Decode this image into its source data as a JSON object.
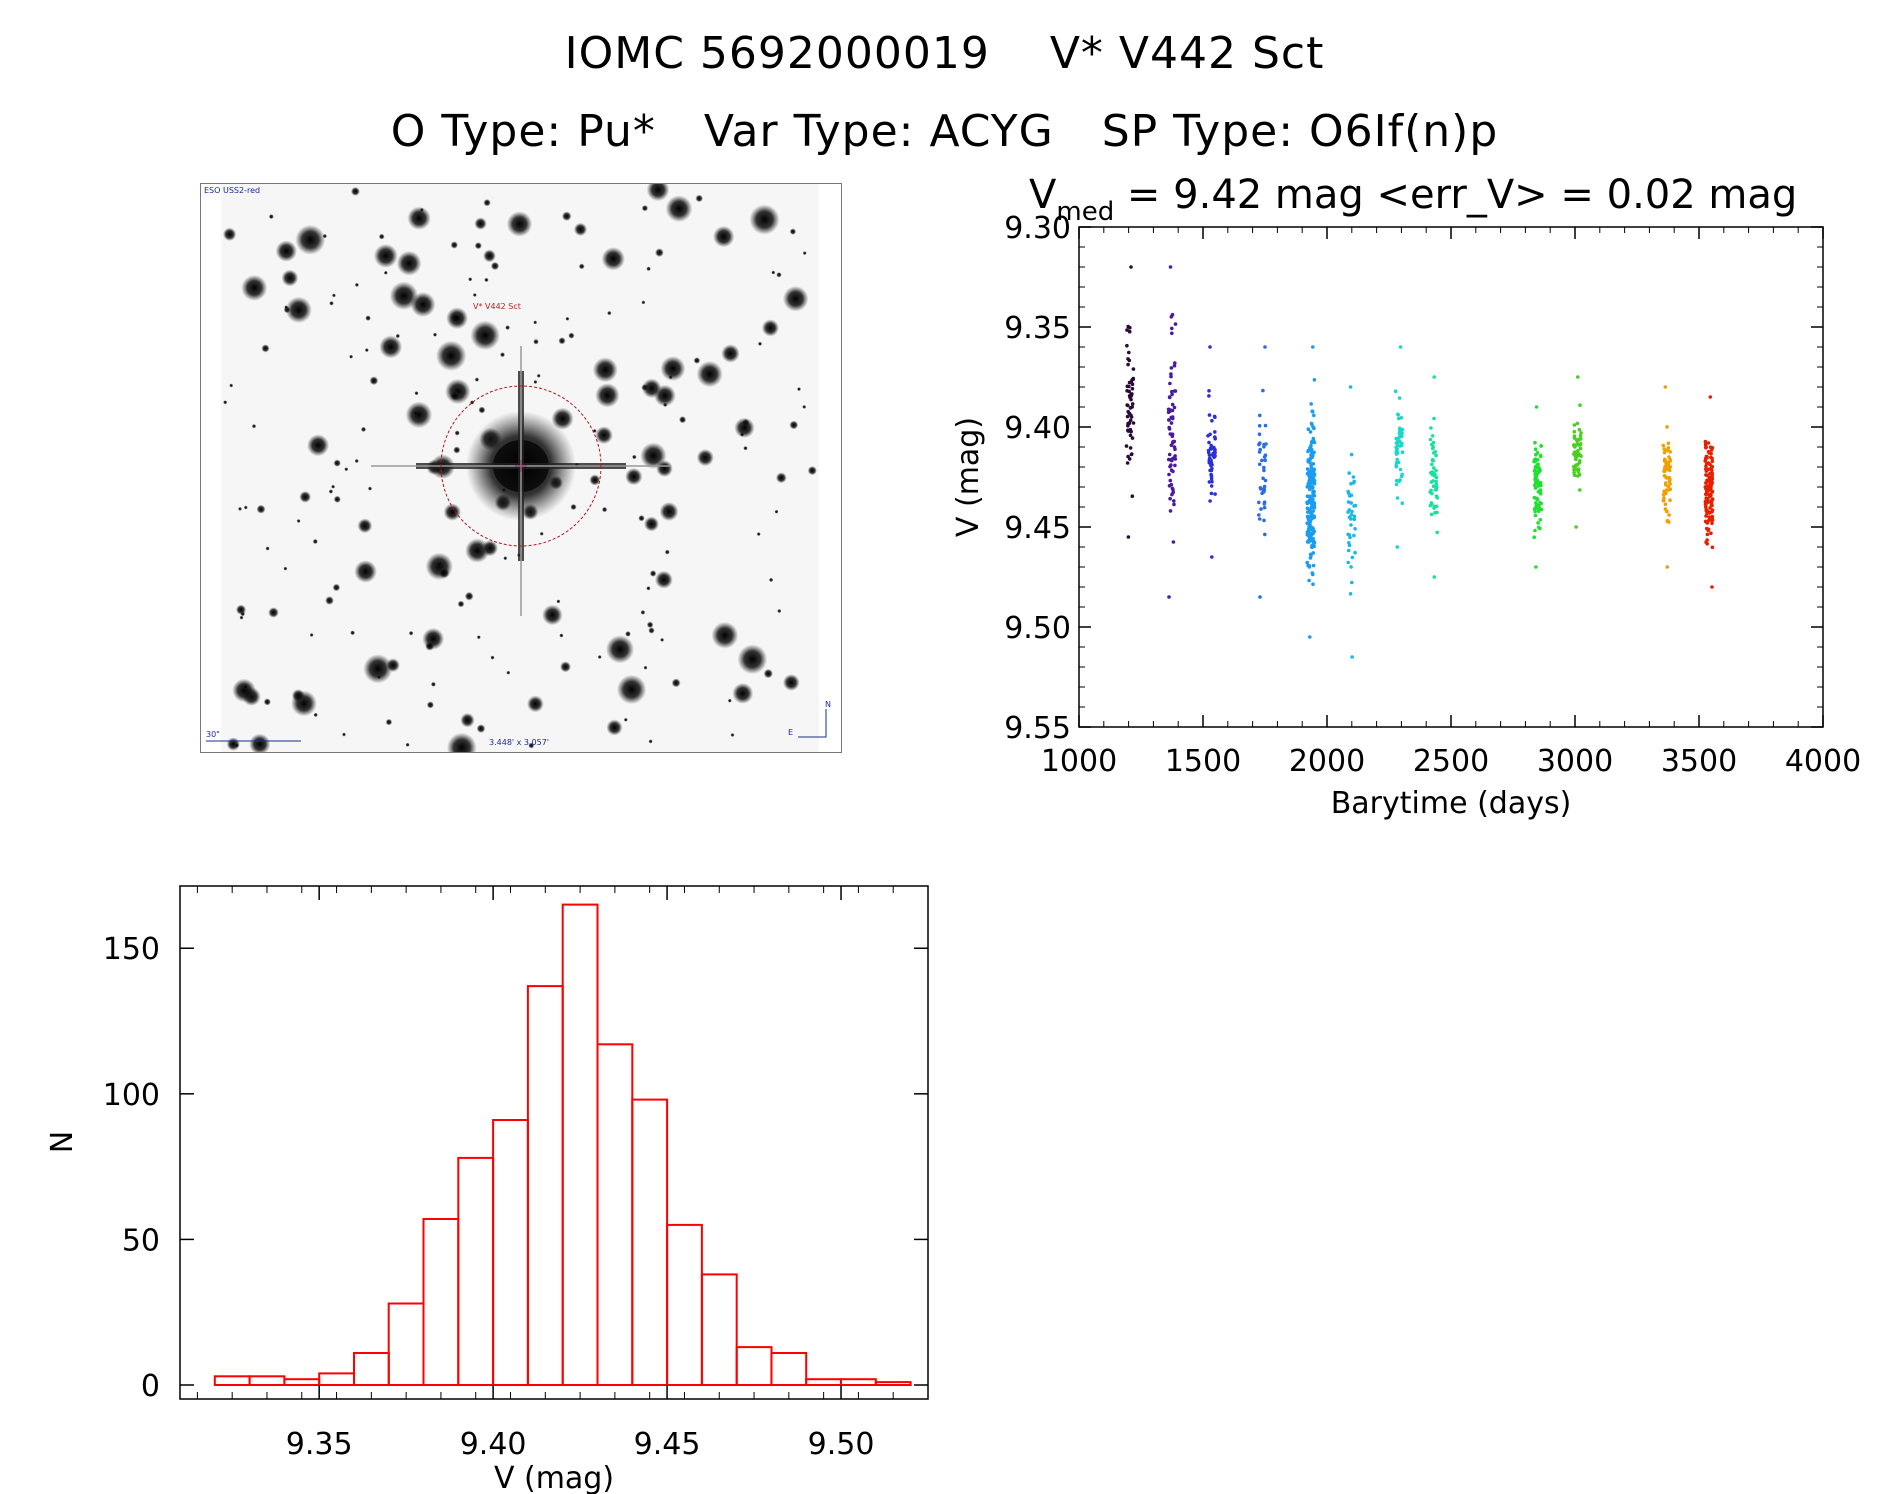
{
  "header": {
    "line1_id": "IOMC 5692000019",
    "line1_name": "V* V442 Sct",
    "otype": "O Type: Pu*",
    "vartype": "Var Type: ACYG",
    "sptype": "SP Type: O6If(n)p"
  },
  "image_panel": {
    "survey_label": "ESO USS2-red",
    "target_label": "V* V442 Sct",
    "scale_label": "30\"",
    "size_label": "3.448' x 3.057'",
    "north_label": "N",
    "east_label": "E"
  },
  "chart_data": [
    {
      "type": "scatter",
      "title_prefix": "V",
      "title_sub": "med",
      "title_rest": " = 9.42 mag <err_V> = 0.02 mag",
      "xlabel": "Barytime (days)",
      "ylabel": "V (mag)",
      "xlim": [
        1000,
        4000
      ],
      "ylim": [
        9.55,
        9.3
      ],
      "xticks": [
        "1000",
        "1500",
        "2000",
        "2500",
        "3000",
        "3500",
        "4000"
      ],
      "yticks": [
        "9.30",
        "9.35",
        "9.40",
        "9.45",
        "9.50",
        "9.55"
      ],
      "groups": [
        {
          "x": 1205,
          "ymin": 9.32,
          "ymax": 9.455,
          "n": 60,
          "color": "#2a0a3a"
        },
        {
          "x": 1375,
          "ymin": 9.32,
          "ymax": 9.485,
          "n": 70,
          "color": "#4a1aa0"
        },
        {
          "x": 1535,
          "ymin": 9.36,
          "ymax": 9.465,
          "n": 50,
          "color": "#2a30d8"
        },
        {
          "x": 1740,
          "ymin": 9.36,
          "ymax": 9.485,
          "n": 40,
          "color": "#2a6ce8"
        },
        {
          "x": 1935,
          "ymin": 9.36,
          "ymax": 9.505,
          "n": 190,
          "color": "#1a9cf0"
        },
        {
          "x": 2100,
          "ymin": 9.38,
          "ymax": 9.515,
          "n": 40,
          "color": "#1ab8e8"
        },
        {
          "x": 2290,
          "ymin": 9.36,
          "ymax": 9.46,
          "n": 50,
          "color": "#1ad8c8"
        },
        {
          "x": 2430,
          "ymin": 9.375,
          "ymax": 9.475,
          "n": 50,
          "color": "#1ae0a0"
        },
        {
          "x": 2850,
          "ymin": 9.39,
          "ymax": 9.47,
          "n": 80,
          "color": "#20e030"
        },
        {
          "x": 3010,
          "ymin": 9.375,
          "ymax": 9.45,
          "n": 60,
          "color": "#4ad020"
        },
        {
          "x": 3370,
          "ymin": 9.38,
          "ymax": 9.47,
          "n": 60,
          "color": "#f0a000"
        },
        {
          "x": 3540,
          "ymin": 9.385,
          "ymax": 9.48,
          "n": 130,
          "color": "#e82000"
        }
      ]
    },
    {
      "type": "bar",
      "xlabel": "V (mag)",
      "ylabel": "N",
      "xlim": [
        9.31,
        9.525
      ],
      "ylim": [
        0,
        170
      ],
      "xticks": [
        "9.35",
        "9.40",
        "9.45",
        "9.50"
      ],
      "yticks": [
        "0",
        "50",
        "100",
        "150"
      ],
      "bin_width": 0.01,
      "bin_start": 9.32,
      "values": [
        3,
        3,
        2,
        4,
        11,
        28,
        57,
        78,
        91,
        137,
        165,
        117,
        98,
        55,
        38,
        13,
        11,
        2,
        2,
        1
      ],
      "color": "#ff0000"
    }
  ]
}
